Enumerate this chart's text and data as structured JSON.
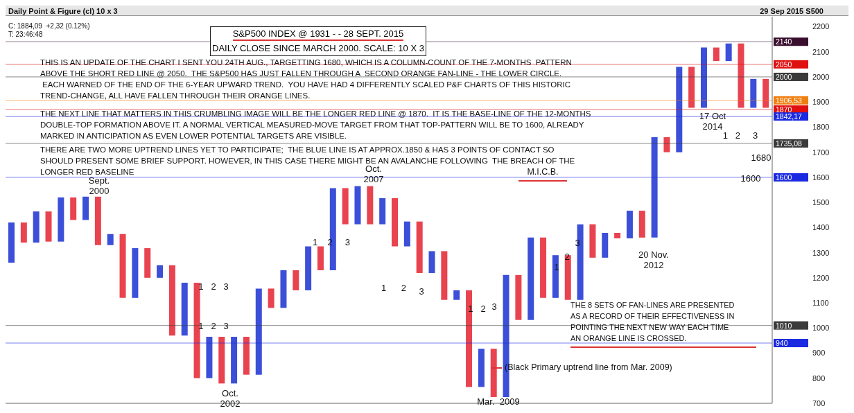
{
  "chart_data": {
    "type": "bar",
    "title": "S&P500 INDEX @ 1931 - - 28 SEPT. 2015",
    "subtitle": "DAILY CLOSE SINCE MARCH 2000.  SCALE: 10 X 3",
    "categories": [
      null,
      null,
      null,
      null,
      null,
      null,
      null,
      null,
      null,
      null,
      null,
      null,
      null,
      null,
      null,
      null,
      null,
      null,
      null,
      null,
      null,
      null,
      null,
      null,
      null,
      null,
      null,
      null,
      null,
      null,
      null,
      null,
      null,
      null,
      null,
      null,
      null,
      null,
      null,
      null,
      null,
      null,
      null,
      null,
      null,
      null,
      null,
      null,
      null,
      null,
      null,
      null,
      null,
      null,
      null,
      null,
      null,
      null,
      null,
      null,
      null,
      null
    ],
    "ylim": [
      700,
      2240
    ],
    "yticks": [
      700,
      800,
      900,
      1000,
      1100,
      1200,
      1300,
      1400,
      1500,
      1600,
      1700,
      1800,
      1900,
      2000,
      2100,
      2200
    ],
    "tick_labels": "y",
    "base": [
      1260,
      1340,
      1340,
      1344,
      1344,
      1430,
      1430,
      1330,
      1330,
      1120,
      1120,
      1200,
      1200,
      970,
      970,
      800,
      800,
      779,
      779,
      814,
      814,
      1080,
      1080,
      1150,
      1150,
      1230,
      1230,
      1413,
      1413,
      1413,
      1413,
      1325,
      1325,
      1219,
      1219,
      1112,
      1112,
      765,
      765,
      725,
      725,
      1032,
      1032,
      1120,
      1120,
      1112,
      1112,
      1280,
      1280,
      1357,
      1357,
      1360,
      1360,
      1700,
      1700,
      1877,
      1877,
      2063,
      2063,
      1877,
      1877,
      1877
    ],
    "values": [
      160,
      80,
      124,
      120,
      176,
      90,
      93,
      193,
      44,
      254,
      198,
      118,
      50,
      280,
      210,
      380,
      165,
      186,
      186,
      151,
      343,
      77,
      150,
      80,
      175,
      95,
      327,
      144,
      152,
      152,
      104,
      192,
      99,
      205,
      87,
      194,
      38,
      385,
      152,
      192,
      486,
      179,
      328,
      240,
      170,
      178,
      301,
      133,
      99,
      22,
      110,
      107,
      400,
      60,
      340,
      163,
      240,
      54,
      70,
      256,
      115,
      115
    ],
    "colors": [
      "#3b4fd8",
      "#e8434f",
      "#3b4fd8",
      "#e8434f",
      "#3b4fd8",
      "#e8434f",
      "#3b4fd8",
      "#e8434f",
      "#3b4fd8",
      "#e8434f",
      "#3b4fd8",
      "#e8434f",
      "#3b4fd8",
      "#e8434f",
      "#3b4fd8",
      "#e8434f",
      "#3b4fd8",
      "#e8434f",
      "#3b4fd8",
      "#e8434f",
      "#3b4fd8",
      "#e8434f",
      "#3b4fd8",
      "#e8434f",
      "#3b4fd8",
      "#e8434f",
      "#3b4fd8",
      "#e8434f",
      "#3b4fd8",
      "#e8434f",
      "#3b4fd8",
      "#e8434f",
      "#3b4fd8",
      "#e8434f",
      "#3b4fd8",
      "#e8434f",
      "#3b4fd8",
      "#e8434f",
      "#3b4fd8",
      "#e8434f",
      "#3b4fd8",
      "#e8434f",
      "#3b4fd8",
      "#e8434f",
      "#3b4fd8",
      "#e8434f",
      "#3b4fd8",
      "#e8434f",
      "#3b4fd8",
      "#e8434f",
      "#3b4fd8",
      "#e8434f",
      "#3b4fd8",
      "#e8434f",
      "#3b4fd8",
      "#e8434f",
      "#3b4fd8",
      "#e8434f",
      "#3b4fd8",
      "#e8434f",
      "#3b4fd8",
      "#e8434f"
    ],
    "ref_lines": [
      {
        "axis": "y",
        "value": 2140,
        "label": "2140",
        "color": "#3a0f2e"
      },
      {
        "axis": "y",
        "value": 2050,
        "label": "2050",
        "color": "#e01010"
      },
      {
        "axis": "y",
        "value": 2000,
        "label": "2000",
        "color": "#3a3a3a"
      },
      {
        "axis": "y",
        "value": 1906.53,
        "label": "1906,53",
        "color": "#f07f10"
      },
      {
        "axis": "y",
        "value": 1870,
        "label": "1870",
        "color": "#e01010"
      },
      {
        "axis": "y",
        "value": 1842.17,
        "label": "1842,17",
        "color": "#1a2ae0"
      },
      {
        "axis": "y",
        "value": 1735.08,
        "label": "1735,08",
        "color": "#3a3a3a"
      },
      {
        "axis": "y",
        "value": 1600,
        "label": "1600",
        "color": "#1a2ae0"
      },
      {
        "axis": "y",
        "value": 1010,
        "label": "1010",
        "color": "#3a3a3a"
      },
      {
        "axis": "y",
        "value": 940,
        "label": "940",
        "color": "#1a2ae0"
      }
    ],
    "annotations": [
      "THIS IS AN UPDATE OF THE CHART I SENT YOU 24TH AUG., TARGETTING 1680, WHICH IS A COLUMN-COUNT OF THE 7-MONTHS  PATTERN\nABOVE THE SHORT RED LINE @ 2050.  THE S&P500 HAS JUST FALLEN THROUGH A  SECOND ORANGE FAN-LINE - THE LOWER CIRCLE.\n EACH WARNED OF THE END OF THE 6-YEAR UPWARD TREND.  YOU HAVE HAD 4 DIFFERENTLY SCALED P&F CHARTS OF THIS HISTORIC\nTREND-CHANGE, ALL HAVE FALLEN THROUGH THEIR ORANGE LINES.",
      "THE NEXT LINE THAT MATTERS IN THIS CRUMBLING IMAGE WILL BE THE LONGER RED LINE @ 1870.  IT IS THE BASE-LINE OF THE 12-MONTHS\nDOUBLE-TOP FORMATION ABOVE IT. A NORMAL VERTICAL MEASURED-MOVE TARGET FROM THAT TOP-PATTERN WILL BE TO 1600, ALREADY\nMARKED IN ANTICIPATION AS EVEN LOWER POTENTIAL TARGETS ARE VISIBLE.",
      "THERE ARE TWO MORE UPTREND LINES YET TO PARTICIPATE;  THE BLUE LINE IS AT APPROX.1850 & HAS 3 POINTS OF CONTACT SO\nSHOULD PRESENT SOME BRIEF SUPPORT. HOWEVER, IN THIS CASE THERE MIGHT BE AN AVALANCHE FOLLOWING  THE BREACH OF THE\nLONGER RED BASELINE",
      "M.I.C.B.",
      "THE 8 SETS OF FAN-LINES ARE PRESENTED\nAS A RECORD OF THEIR EFFECTIVENESS IN\nPOINTING THE NEXT NEW WAY EACH TIME\nAN ORANGE LINE IS CROSSED.",
      "(Black Primary uptrend line from Mar. 2009)",
      "Daily Point & Figure (cl) 10 x 3",
      "C: 1884,09  +2,32 (0.12%)",
      "T: 23:46:48",
      "29 Sep 2015 S500",
      "Sept.\n2000",
      "Oct.\n2002",
      "Oct.\n2007",
      "Mar.  2009",
      "20 Nov.\n2012",
      "17 Oct\n2014",
      "1680",
      "1600",
      "1   2   3",
      "1   2   3",
      "1    2     3",
      "1      2",
      "3",
      "1   2",
      "3",
      "1",
      "2",
      "3",
      "1   2     3"
    ]
  }
}
